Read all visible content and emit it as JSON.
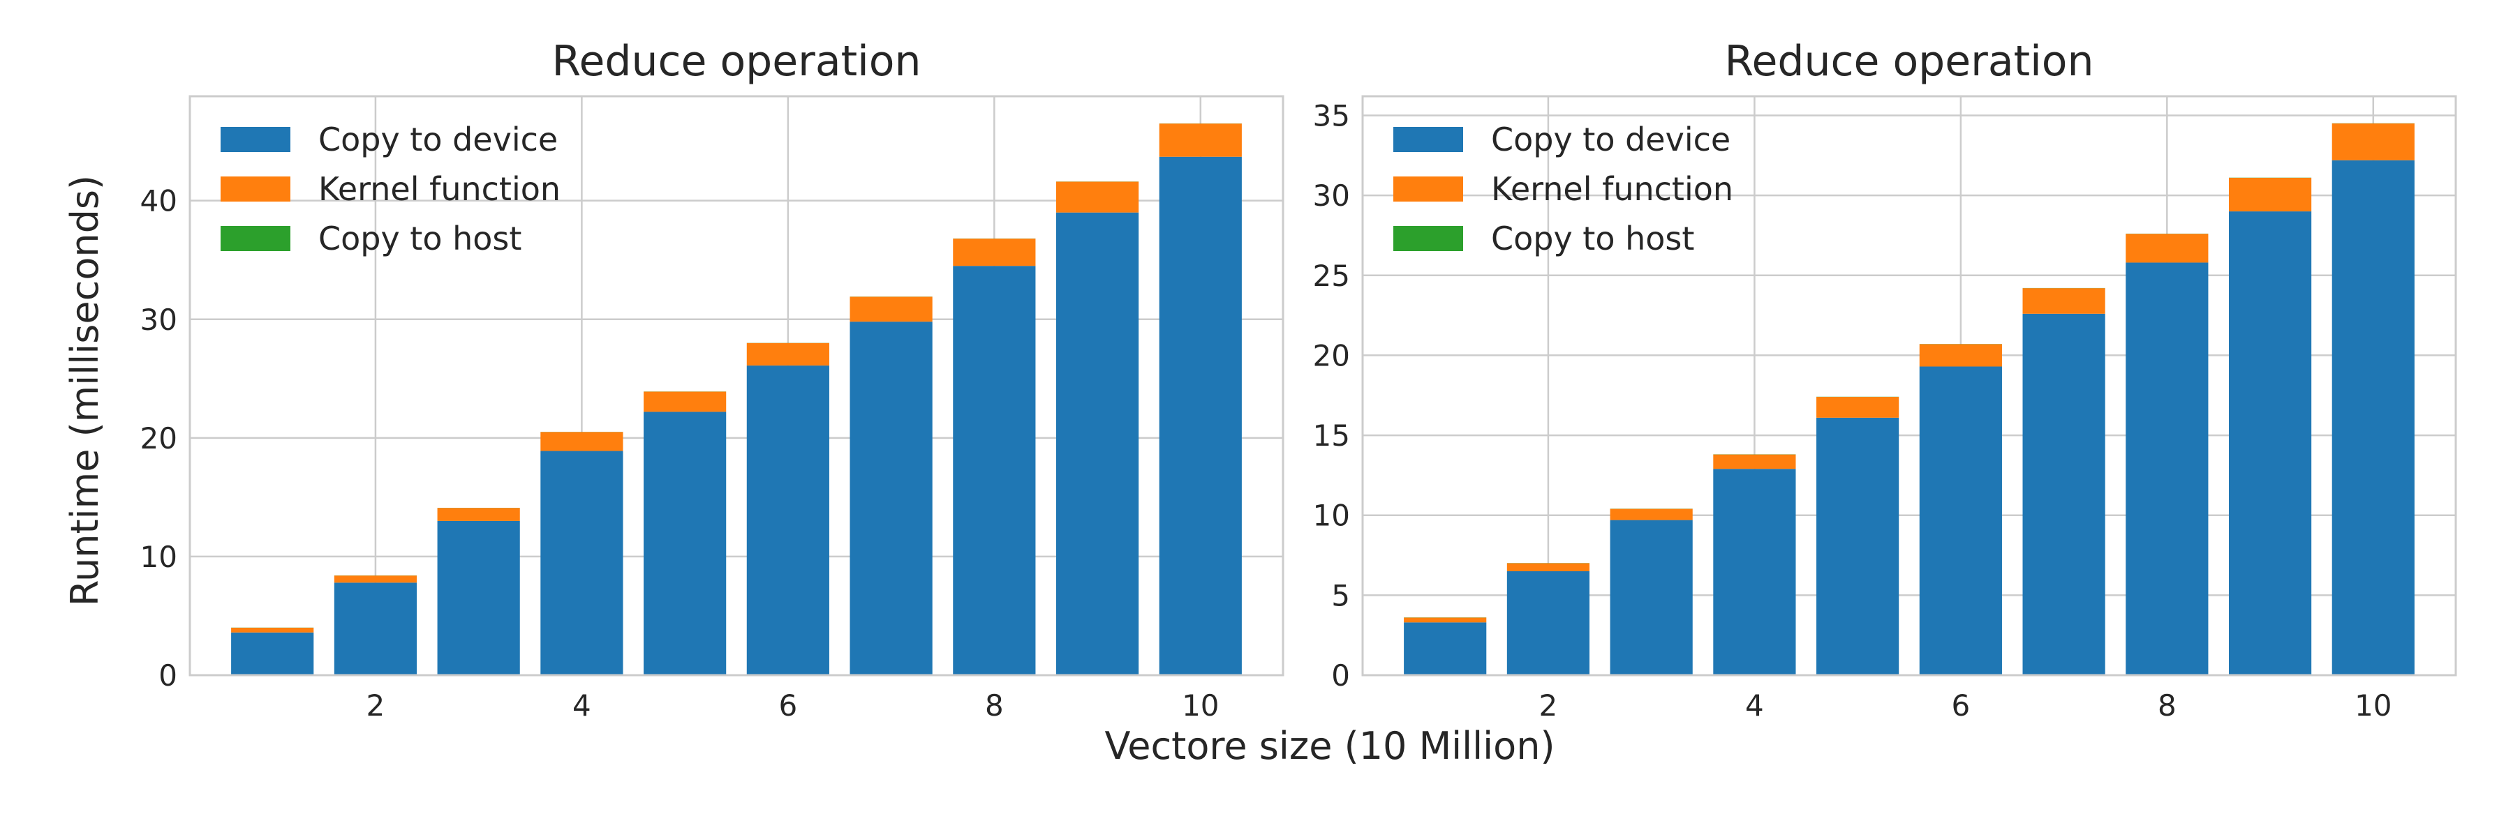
{
  "figure": {
    "ylabel": "Runtime (milliseconds)",
    "xlabel": "Vectore size (10 Million)"
  },
  "colors": {
    "copy_to_device": "#1f77b4",
    "kernel_function": "#ff7f0e",
    "copy_to_host": "#2ca02c",
    "grid": "#cccccc",
    "frame": "#cccccc"
  },
  "chart_data": [
    {
      "type": "bar",
      "stacked": true,
      "title": "Reduce operation",
      "x": [
        1,
        2,
        3,
        4,
        5,
        6,
        7,
        8,
        9,
        10
      ],
      "xticks": [
        2,
        4,
        6,
        8,
        10
      ],
      "xlim": [
        0.2,
        10.8
      ],
      "yticks": [
        0,
        10,
        20,
        30,
        40
      ],
      "ylim": [
        0,
        48.8
      ],
      "grid": true,
      "legend": "top-left",
      "series": [
        {
          "name": "Copy to device",
          "color": "#1f77b4",
          "values": [
            3.6,
            7.8,
            13.0,
            18.9,
            22.2,
            26.1,
            29.8,
            34.5,
            39.0,
            43.7
          ]
        },
        {
          "name": "Kernel function",
          "color": "#ff7f0e",
          "values": [
            0.4,
            0.6,
            1.1,
            1.6,
            1.7,
            1.9,
            2.1,
            2.3,
            2.6,
            2.8
          ]
        },
        {
          "name": "Copy to host",
          "color": "#2ca02c",
          "values": [
            0.01,
            0.01,
            0.01,
            0.01,
            0.01,
            0.01,
            0.01,
            0.01,
            0.01,
            0.01
          ]
        }
      ]
    },
    {
      "type": "bar",
      "stacked": true,
      "title": "Reduce operation",
      "x": [
        1,
        2,
        3,
        4,
        5,
        6,
        7,
        8,
        9,
        10
      ],
      "xticks": [
        2,
        4,
        6,
        8,
        10
      ],
      "xlim": [
        0.2,
        10.8
      ],
      "yticks": [
        0,
        5,
        10,
        15,
        20,
        25,
        30,
        35
      ],
      "ylim": [
        0,
        36.2
      ],
      "grid": true,
      "legend": "top-left",
      "series": [
        {
          "name": "Copy to device",
          "color": "#1f77b4",
          "values": [
            3.3,
            6.5,
            9.7,
            12.9,
            16.1,
            19.3,
            22.6,
            25.8,
            29.0,
            32.2
          ]
        },
        {
          "name": "Kernel function",
          "color": "#ff7f0e",
          "values": [
            0.3,
            0.5,
            0.7,
            0.9,
            1.3,
            1.4,
            1.6,
            1.8,
            2.1,
            2.3
          ]
        },
        {
          "name": "Copy to host",
          "color": "#2ca02c",
          "values": [
            0.01,
            0.01,
            0.01,
            0.01,
            0.01,
            0.01,
            0.01,
            0.01,
            0.01,
            0.01
          ]
        }
      ]
    }
  ]
}
